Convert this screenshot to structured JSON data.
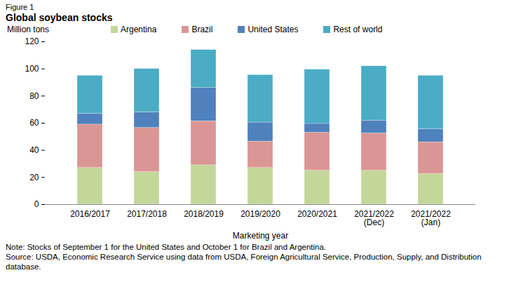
{
  "chart_data": {
    "type": "bar",
    "stacked": true,
    "figure_label": "Figure 1",
    "title": "Global soybean stocks",
    "y_label": "Million tons",
    "x_label": "Marketing year",
    "categories": [
      "2016/2017",
      "2017/2018",
      "2018/2019",
      "2019/2020",
      "2020/2021",
      "2021/2022\n(Dec)",
      "2021/2022\n(Jan)"
    ],
    "series": [
      {
        "name": "Argentina",
        "color": "#c4d79b",
        "values": [
          27,
          24,
          29,
          27,
          25,
          25,
          22.5
        ]
      },
      {
        "name": "Brazil",
        "color": "#da9694",
        "values": [
          32,
          32.5,
          32.5,
          19.5,
          28,
          27.5,
          23.5
        ]
      },
      {
        "name": "United States",
        "color": "#4f81bd",
        "values": [
          8,
          11.5,
          24.5,
          14,
          6.5,
          9.5,
          9.5
        ]
      },
      {
        "name": "Rest of world",
        "color": "#4bacc6",
        "values": [
          28,
          32,
          28,
          35,
          40,
          40,
          39.5
        ]
      }
    ],
    "ylim": [
      0,
      120
    ],
    "yticks": [
      0,
      20,
      40,
      60,
      80,
      100,
      120
    ],
    "grid": false,
    "legend": "top",
    "note": "Note: Stocks of September 1 for the United States and October 1 for Brazil and Argentina.",
    "source": "Source: USDA, Economic Research Service using data from USDA, Foreign Agricultural Service, Production, Supply, and Distribution database."
  }
}
